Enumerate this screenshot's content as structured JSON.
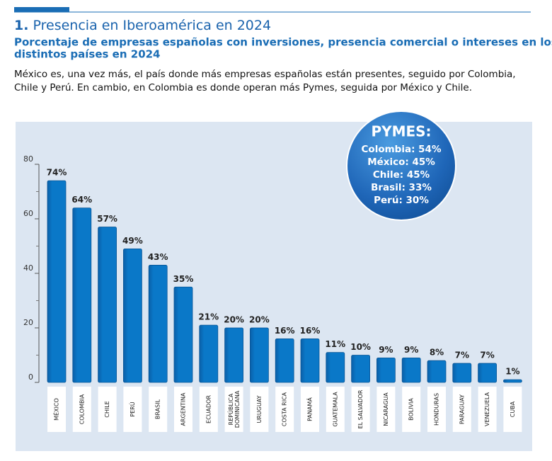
{
  "header": {
    "number": "1.",
    "title": "Presencia en Iberoamérica en 2024",
    "subtitle": [
      "Porcentaje de empresas españolas con inversiones, presencia comercial o intereses en los",
      "distintos países en 2024"
    ],
    "description": [
      "México es, una vez más, el país donde más empresas españolas están presentes, seguido por Colombia,",
      "Chile y Perú. En cambio, en Colombia es donde operan más Pymes, seguida por México y Chile."
    ]
  },
  "chart_data": {
    "type": "bar",
    "categories": [
      "MÉXICO",
      "COLOMBIA",
      "CHILE",
      "PERÚ",
      "BRASIL",
      "ARGENTINA",
      "ECUADOR",
      "REPÚBLICA DOMINICANA",
      "URUGUAY",
      "COSTA RICA",
      "PANAMÁ",
      "GUATEMALA",
      "EL SALVADOR",
      "NICARAGUA",
      "BOLIVIA",
      "HONDURAS",
      "PARAGUAY",
      "VENEZUELA",
      "CUBA"
    ],
    "values": [
      74,
      64,
      57,
      49,
      43,
      35,
      21,
      20,
      20,
      16,
      16,
      11,
      10,
      9,
      9,
      8,
      7,
      7,
      1
    ],
    "value_labels": [
      "74%",
      "64%",
      "57%",
      "49%",
      "43%",
      "35%",
      "21%",
      "20%",
      "20%",
      "16%",
      "16%",
      "11%",
      "10%",
      "9%",
      "9%",
      "8%",
      "7%",
      "7%",
      "1%"
    ],
    "color": "#0a78c8",
    "ylim": [
      0,
      80
    ],
    "yticks": [
      0,
      20,
      40,
      60,
      80
    ],
    "minor_yticks": [
      10,
      30,
      50,
      70
    ],
    "annotation": {
      "title": "PYMES:",
      "items": [
        "Colombia: 54%",
        "México: 45%",
        "Chile: 45%",
        "Brasil: 33%",
        "Perú: 30%"
      ]
    }
  }
}
